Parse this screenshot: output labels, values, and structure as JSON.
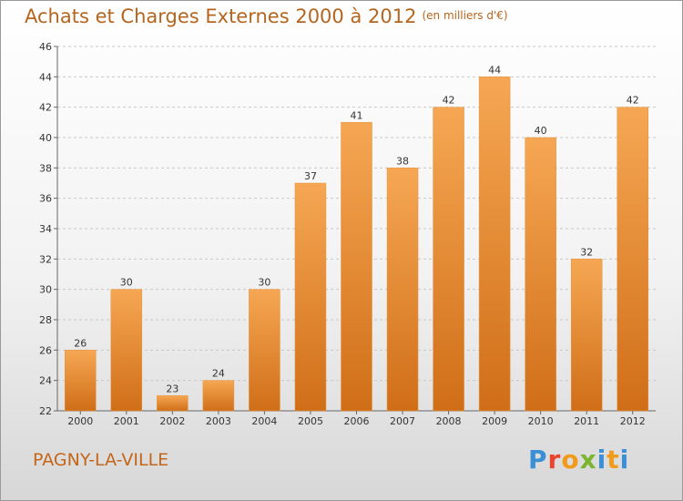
{
  "title": "Achats et Charges Externes 2000 à 2012",
  "subtitle": "(en milliers d'€)",
  "commune": "PAGNY-LA-VILLE",
  "logo": {
    "text": "Proxiti",
    "letter_colors": [
      "#3a8fd6",
      "#e8442e",
      "#f19a1c",
      "#7cb530",
      "#3a8fd6",
      "#f19a1c",
      "#3a8fd6"
    ]
  },
  "colors": {
    "title": "#b5651d",
    "bar_top": "#f6a753",
    "bar_bottom": "#d06e18",
    "grid": "#c8c8c8"
  },
  "chart_data": {
    "type": "bar",
    "title": "Achats et Charges Externes 2000 à 2012",
    "categories": [
      "2000",
      "2001",
      "2002",
      "2003",
      "2004",
      "2005",
      "2006",
      "2007",
      "2008",
      "2009",
      "2010",
      "2011",
      "2012"
    ],
    "values": [
      26,
      30,
      23,
      24,
      30,
      37,
      41,
      38,
      42,
      44,
      40,
      32,
      42
    ],
    "ylim": [
      22,
      46
    ],
    "yticks": [
      22,
      24,
      26,
      28,
      30,
      32,
      34,
      36,
      38,
      40,
      42,
      44,
      46
    ],
    "grid": true,
    "xlabel": "",
    "ylabel": ""
  }
}
